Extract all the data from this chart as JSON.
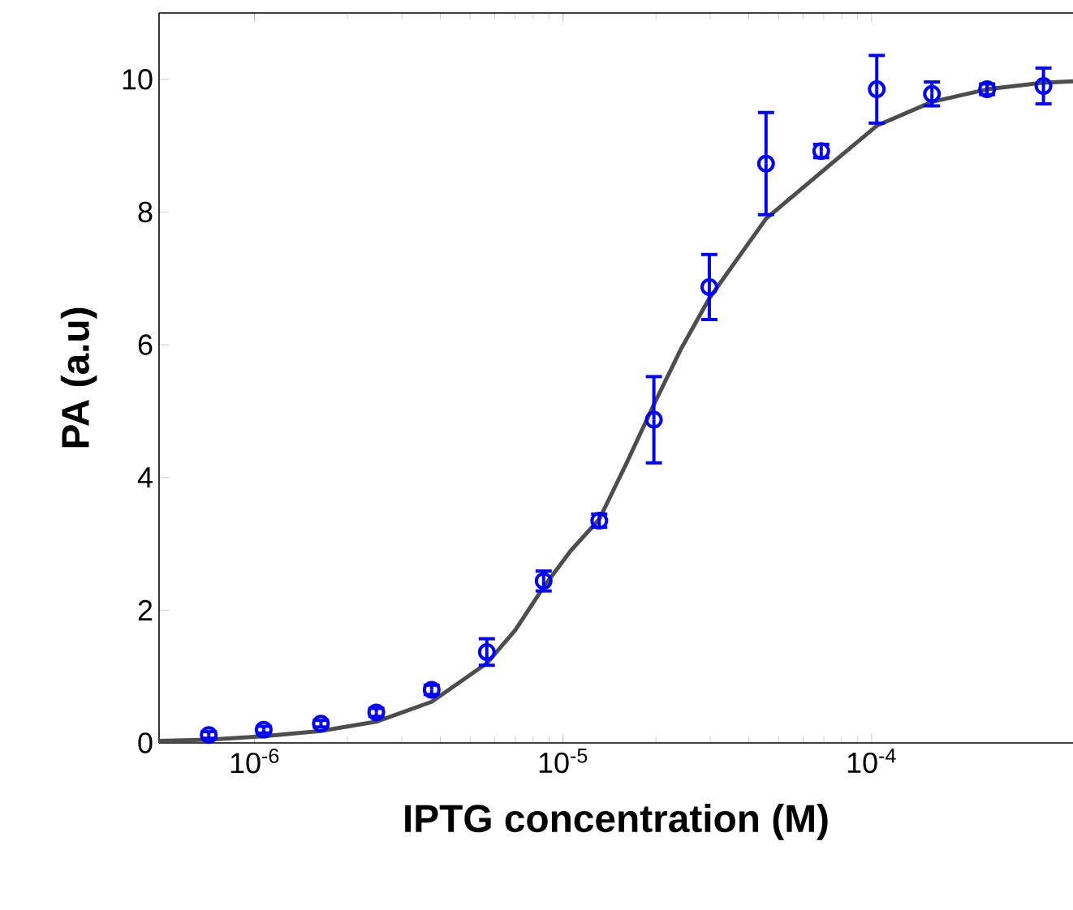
{
  "chart_data": {
    "type": "scatter",
    "xlabel": "IPTG concentration (M)",
    "ylabel": "PA (a.u)",
    "log": "x",
    "grid": false,
    "xlim": [
      4.9e-07,
      0.00045
    ],
    "ylim": [
      0,
      11
    ],
    "xticks": [
      {
        "value": 1e-06,
        "label": "10$^{-6}$"
      },
      {
        "value": 1e-05,
        "label": "10$^{-5}$"
      },
      {
        "value": 0.0001,
        "label": "10$^{-4}$"
      }
    ],
    "yticks": [
      0,
      2,
      4,
      6,
      8,
      10
    ],
    "series": [
      {
        "color": "#0000ff",
        "marker": "circle",
        "x": [
          7.1e-07,
          1.07e-06,
          1.64e-06,
          2.48e-06,
          3.75e-06,
          5.66e-06,
          8.65e-06,
          1.31e-05,
          1.97e-05,
          2.98e-05,
          4.55e-05,
          6.87e-05,
          0.000104,
          0.000157,
          0.000237,
          0.000361
        ],
        "values": [
          0.12,
          0.2,
          0.29,
          0.46,
          0.8,
          1.37,
          2.44,
          3.35,
          4.87,
          6.87,
          8.73,
          8.92,
          9.85,
          9.78,
          9.85,
          9.9
        ],
        "errors": [
          0.05,
          0.05,
          0.05,
          0.06,
          0.07,
          0.2,
          0.15,
          0.1,
          0.65,
          0.49,
          0.77,
          0.1,
          0.51,
          0.18,
          0.08,
          0.27
        ]
      },
      {
        "type": "line",
        "color": "#4d4d4d",
        "marker": "none",
        "line_style": "solid",
        "x": [
          4.9e-07,
          7.1e-07,
          1.07e-06,
          1.64e-06,
          2.48e-06,
          3.75e-06,
          5.66e-06,
          7e-06,
          8.65e-06,
          1.06e-05,
          1.31e-05,
          1.6e-05,
          1.97e-05,
          2.42e-05,
          2.98e-05,
          4.55e-05,
          6.87e-05,
          0.000104,
          0.000157,
          0.000237,
          0.000361,
          0.00045
        ],
        "values": [
          0.03,
          0.05,
          0.1,
          0.18,
          0.32,
          0.62,
          1.2,
          1.7,
          2.35,
          2.9,
          3.37,
          4.2,
          5.1,
          5.95,
          6.7,
          7.9,
          8.6,
          9.3,
          9.66,
          9.85,
          9.95,
          9.97
        ]
      }
    ]
  }
}
